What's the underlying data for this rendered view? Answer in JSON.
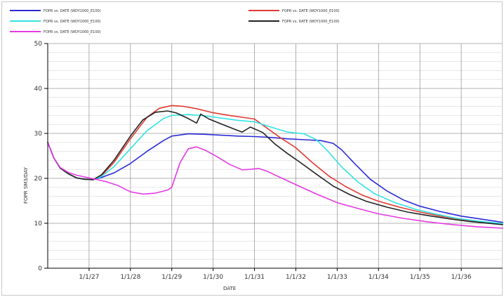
{
  "chart_data": {
    "type": "line",
    "xlabel": "DATE",
    "ylabel": "FOPR   SM3/DAY",
    "xlim": [
      1926.0,
      1937.0
    ],
    "ylim": [
      0,
      50
    ],
    "yticks": [
      0,
      10,
      20,
      30,
      40,
      50
    ],
    "xticks": [
      {
        "x": 1927.0,
        "label": "1/1/27"
      },
      {
        "x": 1928.0,
        "label": "1/1/28"
      },
      {
        "x": 1929.0,
        "label": "1/1/29"
      },
      {
        "x": 1930.0,
        "label": "1/1/30"
      },
      {
        "x": 1931.0,
        "label": "1/1/31"
      },
      {
        "x": 1932.0,
        "label": "1/1/32"
      },
      {
        "x": 1933.0,
        "label": "1/1/33"
      },
      {
        "x": 1934.0,
        "label": "1/1/34"
      },
      {
        "x": 1935.0,
        "label": "1/1/35"
      },
      {
        "x": 1936.0,
        "label": "1/1/36"
      }
    ],
    "grid": true,
    "legend_position": "top",
    "series": [
      {
        "name": "FOPR vs. DATE (WDY1000_E100)",
        "color": "#2b2bd6",
        "points": [
          [
            1926.0,
            28
          ],
          [
            1926.15,
            24.5
          ],
          [
            1926.3,
            22.3
          ],
          [
            1926.5,
            21
          ],
          [
            1926.7,
            20.1
          ],
          [
            1926.9,
            19.8
          ],
          [
            1927.1,
            19.7
          ],
          [
            1927.3,
            20.2
          ],
          [
            1927.6,
            21.2
          ],
          [
            1928.0,
            23.3
          ],
          [
            1928.4,
            26
          ],
          [
            1928.8,
            28.4
          ],
          [
            1929.0,
            29.4
          ],
          [
            1929.4,
            29.9
          ],
          [
            1929.8,
            29.8
          ],
          [
            1930.2,
            29.6
          ],
          [
            1930.6,
            29.4
          ],
          [
            1931.0,
            29.3
          ],
          [
            1931.4,
            29.1
          ],
          [
            1931.8,
            28.8
          ],
          [
            1932.2,
            28.6
          ],
          [
            1932.6,
            28.4
          ],
          [
            1932.9,
            27.8
          ],
          [
            1933.1,
            26.4
          ],
          [
            1933.4,
            23.5
          ],
          [
            1933.8,
            19.8
          ],
          [
            1934.2,
            17.2
          ],
          [
            1934.6,
            15.2
          ],
          [
            1935.0,
            13.8
          ],
          [
            1935.5,
            12.6
          ],
          [
            1936.0,
            11.6
          ],
          [
            1936.5,
            10.9
          ],
          [
            1937.0,
            10.2
          ]
        ]
      },
      {
        "name": "FOPR vs. DATE (WDY1000_E100)",
        "color": "#e03a32",
        "points": [
          [
            1926.0,
            28
          ],
          [
            1926.15,
            24.5
          ],
          [
            1926.3,
            22.3
          ],
          [
            1926.5,
            21
          ],
          [
            1926.7,
            20.1
          ],
          [
            1926.9,
            19.8
          ],
          [
            1927.1,
            19.7
          ],
          [
            1927.3,
            20.6
          ],
          [
            1927.6,
            23.5
          ],
          [
            1928.0,
            28.8
          ],
          [
            1928.4,
            33.6
          ],
          [
            1928.7,
            35.6
          ],
          [
            1929.0,
            36.2
          ],
          [
            1929.3,
            36
          ],
          [
            1929.6,
            35.5
          ],
          [
            1930.0,
            34.6
          ],
          [
            1930.4,
            34
          ],
          [
            1930.7,
            33.6
          ],
          [
            1931.0,
            33.2
          ],
          [
            1931.3,
            31.2
          ],
          [
            1931.6,
            29.2
          ],
          [
            1932.0,
            26.8
          ],
          [
            1932.4,
            23.5
          ],
          [
            1932.8,
            20.5
          ],
          [
            1933.2,
            18.2
          ],
          [
            1933.6,
            16.3
          ],
          [
            1934.0,
            14.9
          ],
          [
            1934.5,
            13.6
          ],
          [
            1935.0,
            12.5
          ],
          [
            1935.5,
            11.6
          ],
          [
            1936.0,
            10.9
          ],
          [
            1936.5,
            10.3
          ],
          [
            1937.0,
            9.8
          ]
        ]
      },
      {
        "name": "FOPR vs. DATE (WDY1000_E100)",
        "color": "#33e3e3",
        "points": [
          [
            1926.0,
            28
          ],
          [
            1926.15,
            24.5
          ],
          [
            1926.3,
            22.3
          ],
          [
            1926.5,
            21
          ],
          [
            1926.7,
            20.1
          ],
          [
            1926.9,
            19.8
          ],
          [
            1927.1,
            19.7
          ],
          [
            1927.3,
            20.4
          ],
          [
            1927.6,
            22.6
          ],
          [
            1928.0,
            26.6
          ],
          [
            1928.4,
            30.6
          ],
          [
            1928.8,
            33.3
          ],
          [
            1929.0,
            34
          ],
          [
            1929.4,
            34.2
          ],
          [
            1929.8,
            33.9
          ],
          [
            1930.2,
            33.4
          ],
          [
            1930.6,
            32.9
          ],
          [
            1931.0,
            32.6
          ],
          [
            1931.4,
            31.4
          ],
          [
            1931.8,
            30.3
          ],
          [
            1932.2,
            29.9
          ],
          [
            1932.5,
            28.6
          ],
          [
            1932.8,
            25.8
          ],
          [
            1933.1,
            22.6
          ],
          [
            1933.5,
            19.2
          ],
          [
            1933.9,
            16.6
          ],
          [
            1934.4,
            14.6
          ],
          [
            1934.9,
            13.1
          ],
          [
            1935.4,
            12
          ],
          [
            1935.9,
            11.1
          ],
          [
            1936.4,
            10.5
          ],
          [
            1937.0,
            9.9
          ]
        ]
      },
      {
        "name": "FOPR vs. DATE (WDY1000_E100)",
        "color": "#222222",
        "points": [
          [
            1926.0,
            28
          ],
          [
            1926.15,
            24.5
          ],
          [
            1926.3,
            22.3
          ],
          [
            1926.5,
            21
          ],
          [
            1926.7,
            20.1
          ],
          [
            1926.9,
            19.8
          ],
          [
            1927.1,
            19.7
          ],
          [
            1927.3,
            20.8
          ],
          [
            1927.6,
            24
          ],
          [
            1928.0,
            29.4
          ],
          [
            1928.3,
            33
          ],
          [
            1928.6,
            34.7
          ],
          [
            1928.9,
            35
          ],
          [
            1929.1,
            34.6
          ],
          [
            1929.4,
            33.3
          ],
          [
            1929.6,
            32.3
          ],
          [
            1929.7,
            34.3
          ],
          [
            1929.9,
            33.2
          ],
          [
            1930.2,
            32.1
          ],
          [
            1930.5,
            31
          ],
          [
            1930.7,
            30.3
          ],
          [
            1930.9,
            31.4
          ],
          [
            1931.2,
            30.2
          ],
          [
            1931.5,
            27.6
          ],
          [
            1931.8,
            25.5
          ],
          [
            1932.1,
            23.6
          ],
          [
            1932.5,
            20.9
          ],
          [
            1932.9,
            18.3
          ],
          [
            1933.3,
            16.4
          ],
          [
            1933.7,
            14.9
          ],
          [
            1934.2,
            13.6
          ],
          [
            1934.7,
            12.5
          ],
          [
            1935.2,
            11.7
          ],
          [
            1935.7,
            11
          ],
          [
            1936.2,
            10.4
          ],
          [
            1937.0,
            9.7
          ]
        ]
      },
      {
        "name": "FOPR vs. DATE (WDY1000_E100)",
        "color": "#e43ae4",
        "points": [
          [
            1926.0,
            28
          ],
          [
            1926.15,
            24.5
          ],
          [
            1926.3,
            22.4
          ],
          [
            1926.5,
            21.3
          ],
          [
            1926.7,
            20.7
          ],
          [
            1926.9,
            20.3
          ],
          [
            1927.1,
            19.9
          ],
          [
            1927.4,
            19.3
          ],
          [
            1927.7,
            18.4
          ],
          [
            1928.0,
            17
          ],
          [
            1928.3,
            16.5
          ],
          [
            1928.6,
            16.7
          ],
          [
            1928.9,
            17.4
          ],
          [
            1929.0,
            18
          ],
          [
            1929.2,
            23.5
          ],
          [
            1929.4,
            26.6
          ],
          [
            1929.6,
            27
          ],
          [
            1929.8,
            26.3
          ],
          [
            1930.1,
            24.8
          ],
          [
            1930.4,
            23.1
          ],
          [
            1930.7,
            21.9
          ],
          [
            1930.9,
            22
          ],
          [
            1931.1,
            22.2
          ],
          [
            1931.3,
            21.6
          ],
          [
            1931.6,
            20.3
          ],
          [
            1932.0,
            18.6
          ],
          [
            1932.5,
            16.5
          ],
          [
            1933.0,
            14.6
          ],
          [
            1933.5,
            13.3
          ],
          [
            1934.0,
            12.1
          ],
          [
            1934.6,
            11.1
          ],
          [
            1935.2,
            10.3
          ],
          [
            1935.8,
            9.7
          ],
          [
            1936.4,
            9.2
          ],
          [
            1937.0,
            8.9
          ]
        ]
      }
    ]
  }
}
